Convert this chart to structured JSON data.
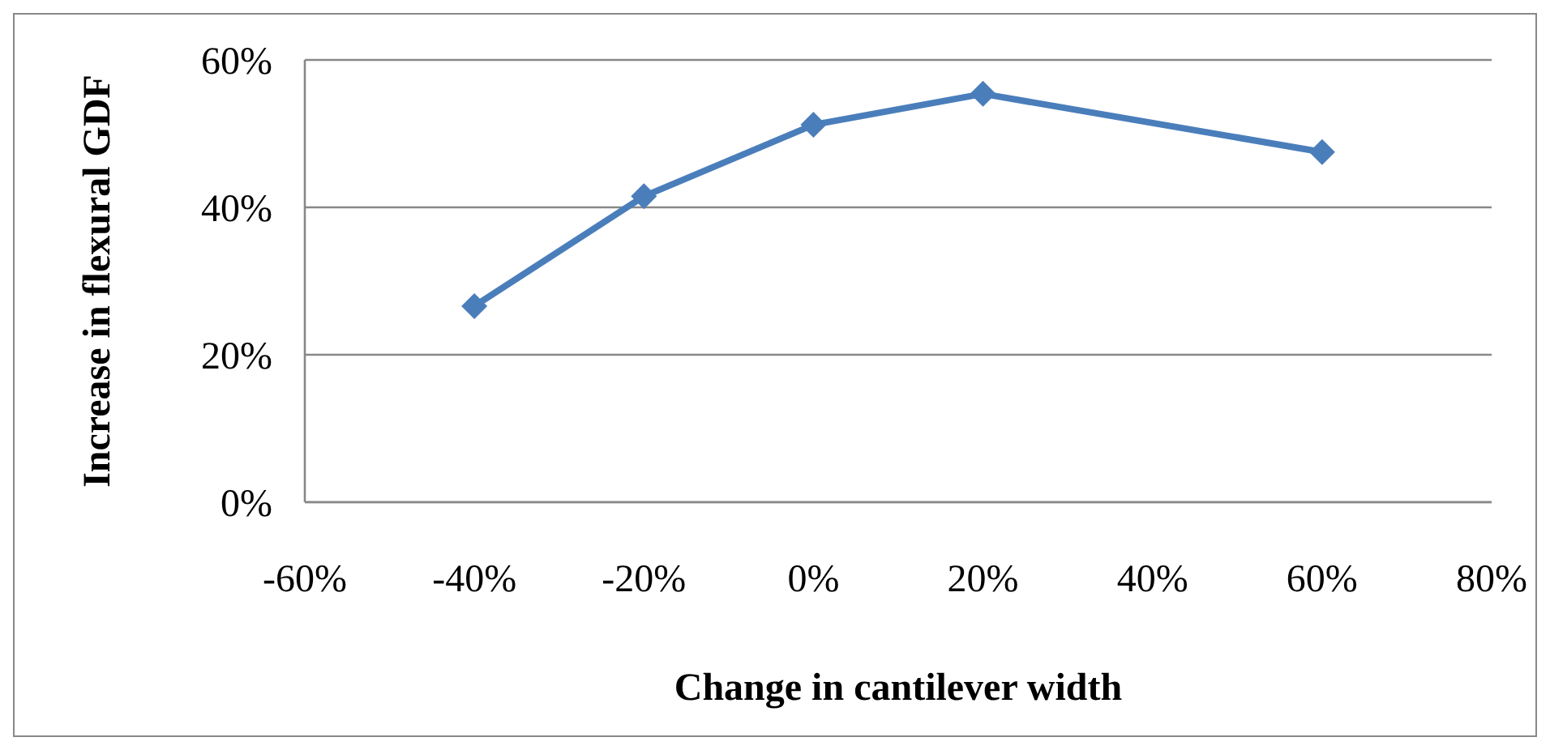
{
  "chart_data": {
    "type": "line",
    "xlabel": "Change in cantilever width",
    "ylabel": "Increase in flexural GDF",
    "x": [
      -40,
      -20,
      0,
      20,
      60
    ],
    "series": [
      {
        "color": "#4a7ebb",
        "values": [
          26.6,
          41.5,
          51.2,
          55.4,
          47.5
        ]
      }
    ],
    "xlim": [
      -60,
      80
    ],
    "xticks": [
      {
        "value": -60,
        "label": "-60%"
      },
      {
        "value": -40,
        "label": "-40%"
      },
      {
        "value": -20,
        "label": "-20%"
      },
      {
        "value": 0,
        "label": "0%"
      },
      {
        "value": 20,
        "label": "20%"
      },
      {
        "value": 40,
        "label": "40%"
      },
      {
        "value": 60,
        "label": "60%"
      },
      {
        "value": 80,
        "label": "80%"
      }
    ],
    "ylim": [
      0,
      60
    ],
    "yticks": [
      {
        "value": 0,
        "label": "0%"
      },
      {
        "value": 20,
        "label": "20%"
      },
      {
        "value": 40,
        "label": "40%"
      },
      {
        "value": 60,
        "label": "60%"
      }
    ],
    "grid": "y",
    "legend": false,
    "marker": "diamond",
    "line_style": "solid"
  }
}
